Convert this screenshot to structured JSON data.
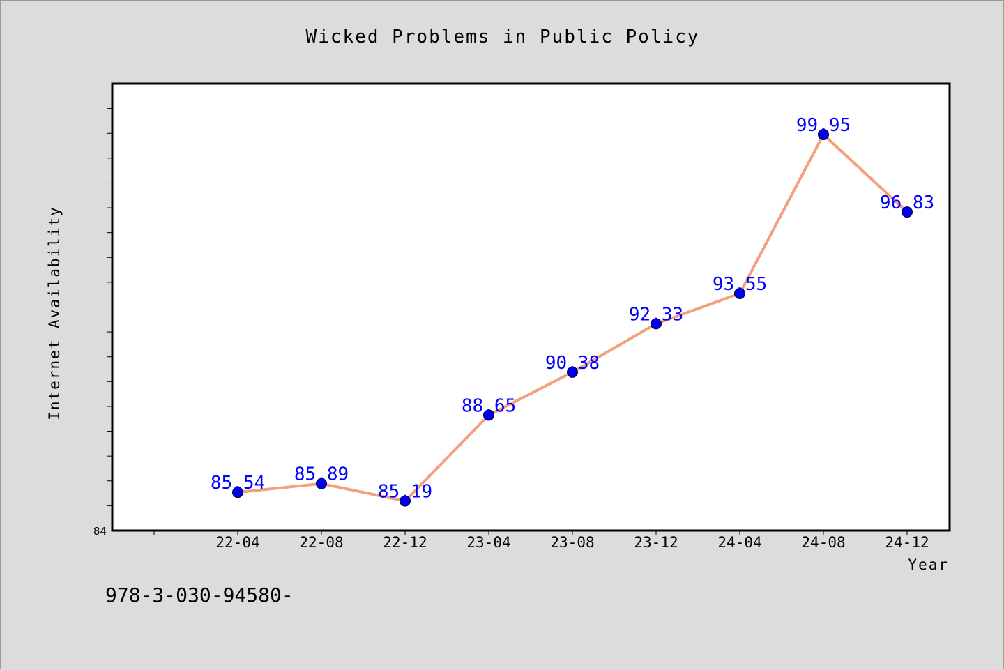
{
  "chart_data": {
    "type": "line",
    "title": "Wicked Problems in Public Policy",
    "xlabel": "Year",
    "ylabel": "Internet Availability",
    "categories": [
      "22-04",
      "22-08",
      "22-12",
      "23-04",
      "23-08",
      "23-12",
      "24-04",
      "24-08",
      "24-12"
    ],
    "series": [
      {
        "values": [
          85.54,
          85.89,
          85.19,
          88.65,
          90.38,
          92.33,
          93.55,
          99.95,
          96.83
        ],
        "labels": [
          "85.54",
          "85.89",
          "85.19",
          "88.65",
          "90.38",
          "92.33",
          "93.55",
          "99.95",
          "96.83"
        ],
        "line_color": "#f4a07c",
        "marker_color": "#0000ee"
      }
    ],
    "ylim": [
      84,
      102
    ],
    "ytick_labels": [
      "84"
    ],
    "grid": false,
    "data_label_color": "#0000ff"
  },
  "footer_text": "978-3-030-94580-"
}
